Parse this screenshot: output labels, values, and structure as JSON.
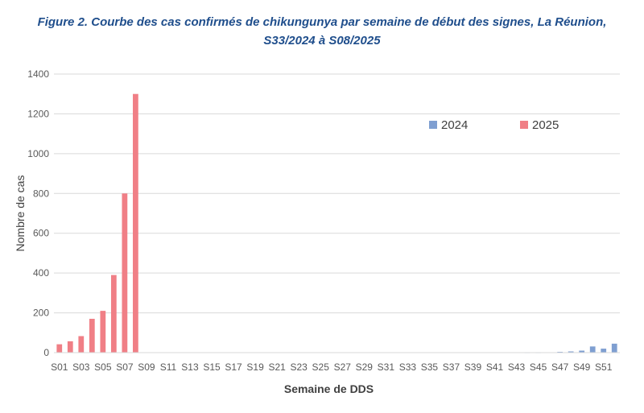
{
  "figure": {
    "title_line1": "Figure 2. Courbe des cas confirmés de chikungunya par semaine de début des signes, La Réunion,",
    "title_line2": "S33/2024 à S08/2025"
  },
  "chart_data": {
    "type": "bar",
    "xlabel": "Semaine de DDS",
    "ylabel": "Nombre de cas",
    "ylim": [
      0,
      1400
    ],
    "yticks": [
      0,
      200,
      400,
      600,
      800,
      1000,
      1200,
      1400
    ],
    "grid": true,
    "legend_position": "top-right",
    "categories": [
      "S01",
      "S02",
      "S03",
      "S04",
      "S05",
      "S06",
      "S07",
      "S08",
      "S09",
      "S10",
      "S11",
      "S12",
      "S13",
      "S14",
      "S15",
      "S16",
      "S17",
      "S18",
      "S19",
      "S20",
      "S21",
      "S22",
      "S23",
      "S24",
      "S25",
      "S26",
      "S27",
      "S28",
      "S29",
      "S30",
      "S31",
      "S32",
      "S33",
      "S34",
      "S35",
      "S36",
      "S37",
      "S38",
      "S39",
      "S40",
      "S41",
      "S42",
      "S43",
      "S44",
      "S45",
      "S46",
      "S47",
      "S48",
      "S49",
      "S50",
      "S51",
      "S52"
    ],
    "series": [
      {
        "name": "2024",
        "color": "#7f9fd1",
        "values": [
          0,
          0,
          0,
          0,
          0,
          0,
          0,
          0,
          0,
          0,
          0,
          0,
          0,
          0,
          0,
          0,
          0,
          0,
          0,
          0,
          0,
          0,
          0,
          0,
          0,
          0,
          0,
          0,
          0,
          0,
          0,
          0,
          0,
          0,
          0,
          0,
          0,
          0,
          0,
          0,
          0,
          0,
          0,
          1,
          1,
          2,
          4,
          6,
          10,
          31,
          20,
          45
        ]
      },
      {
        "name": "2025",
        "color": "#f07f86",
        "values": [
          42,
          57,
          83,
          170,
          210,
          390,
          800,
          1300,
          0,
          0,
          0,
          0,
          0,
          0,
          0,
          0,
          0,
          0,
          0,
          0,
          0,
          0,
          0,
          0,
          0,
          0,
          0,
          0,
          0,
          0,
          0,
          0,
          0,
          0,
          0,
          0,
          0,
          0,
          0,
          0,
          0,
          0,
          0,
          0,
          0,
          0,
          0,
          0,
          0,
          0,
          0,
          0
        ]
      }
    ],
    "xtick_labels": [
      "S01",
      "S03",
      "S05",
      "S07",
      "S09",
      "S11",
      "S13",
      "S15",
      "S17",
      "S19",
      "S21",
      "S23",
      "S25",
      "S27",
      "S29",
      "S31",
      "S33",
      "S35",
      "S37",
      "S39",
      "S41",
      "S43",
      "S45",
      "S47",
      "S49",
      "S51"
    ]
  }
}
